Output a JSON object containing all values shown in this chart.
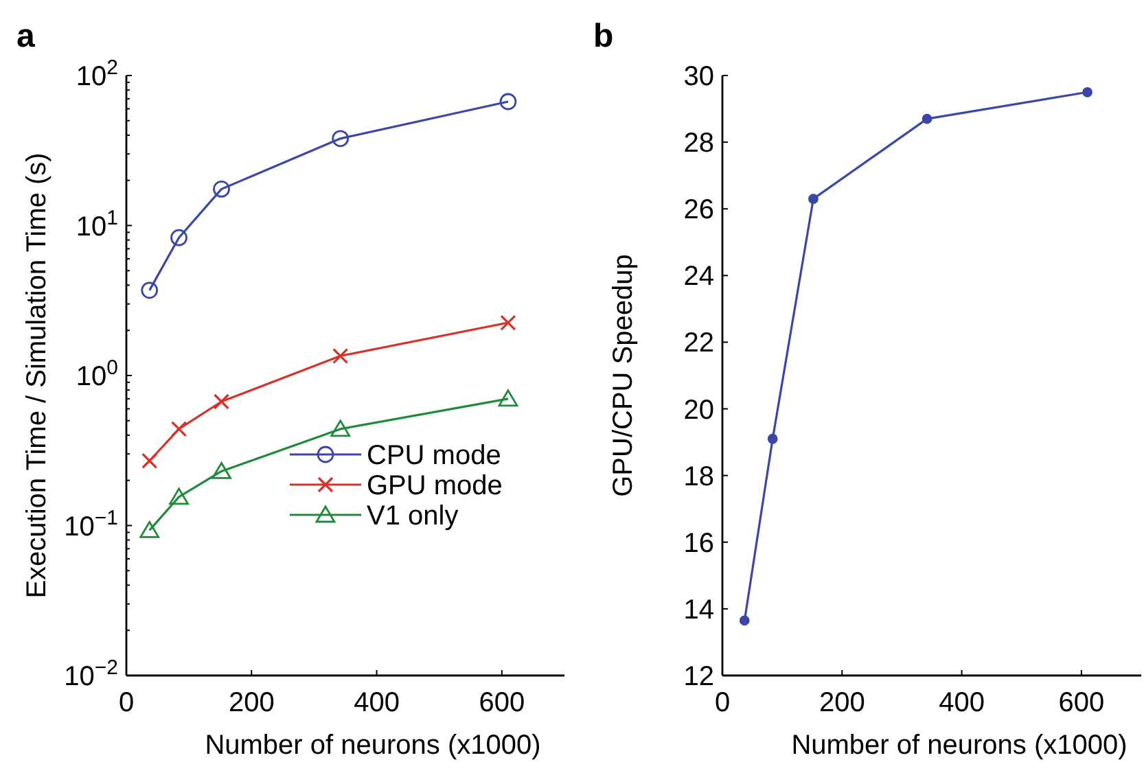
{
  "chart_data": [
    {
      "type": "line",
      "title": "a",
      "xlabel": "Number of neurons (x1000)",
      "ylabel": "Execution Time / Simulation Time (s)",
      "log": "y",
      "xlim": [
        0,
        700
      ],
      "xticks": [
        0,
        200,
        400,
        600
      ],
      "ylim": [
        0.01,
        100
      ],
      "yticks": [
        {
          "value": 0.01,
          "label": "10$^{−2}$"
        },
        {
          "value": 0.1,
          "label": "10$^{−1}$"
        },
        {
          "value": 1,
          "label": "10$^{0}$"
        },
        {
          "value": 10,
          "label": "10$^{1}$"
        },
        {
          "value": 100,
          "label": "10$^{2}$"
        }
      ],
      "grid": false,
      "legend": "bottom right",
      "x": [
        37,
        84,
        152,
        342,
        610
      ],
      "series": [
        {
          "name": "CPU mode",
          "color": "#3a47a8",
          "marker": "circle",
          "values": [
            3.7,
            8.3,
            17.5,
            38,
            67
          ]
        },
        {
          "name": "GPU mode",
          "color": "#d7322a",
          "marker": "cross",
          "values": [
            0.27,
            0.44,
            0.67,
            1.35,
            2.25
          ]
        },
        {
          "name": "V1 only",
          "color": "#1f8a3c",
          "marker": "triangle",
          "values": [
            0.093,
            0.155,
            0.23,
            0.44,
            0.7
          ]
        }
      ]
    },
    {
      "type": "line",
      "title": "b",
      "xlabel": "Number of neurons (x1000)",
      "ylabel": "GPU/CPU Speedup",
      "xlim": [
        0,
        700
      ],
      "xticks": [
        0,
        200,
        400,
        600
      ],
      "ylim": [
        12,
        30
      ],
      "yticks": [
        12,
        14,
        16,
        18,
        20,
        22,
        24,
        26,
        28,
        30
      ],
      "grid": false,
      "legend": false,
      "marker": "circle",
      "x": [
        37,
        84,
        152,
        342,
        610
      ],
      "series": [
        {
          "color": "#3a47a8",
          "values": [
            13.65,
            19.1,
            26.3,
            28.7,
            29.5
          ]
        }
      ]
    }
  ]
}
